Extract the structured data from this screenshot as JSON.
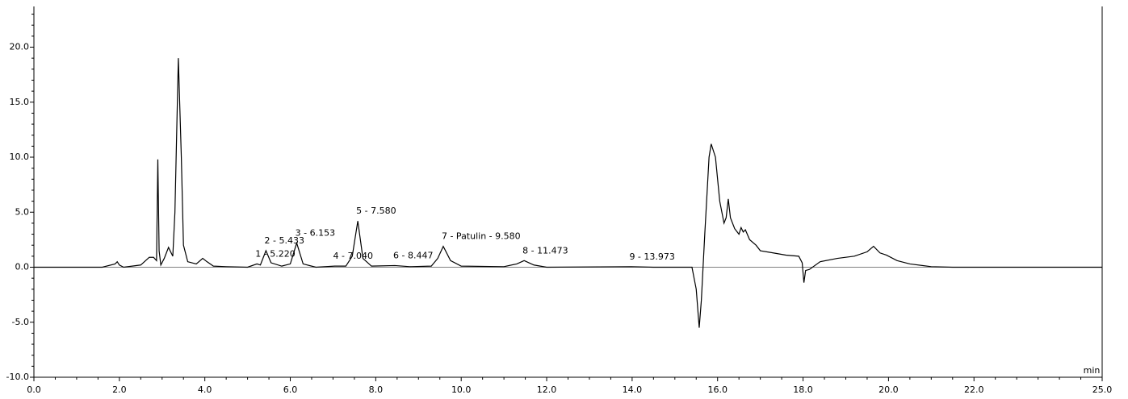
{
  "chart_data": {
    "type": "line",
    "x_label": "min",
    "color": "#000000",
    "x": [
      0,
      1.6,
      1.9,
      1.95,
      2.0,
      2.1,
      2.5,
      2.7,
      2.8,
      2.87,
      2.9,
      2.93,
      2.97,
      3.05,
      3.15,
      3.25,
      3.3,
      3.38,
      3.45,
      3.5,
      3.6,
      3.8,
      3.95,
      4.05,
      4.2,
      4.5,
      5.0,
      5.22,
      5.3,
      5.43,
      5.55,
      5.8,
      6.0,
      6.15,
      6.3,
      6.6,
      7.04,
      7.3,
      7.45,
      7.58,
      7.7,
      7.9,
      8.447,
      8.8,
      9.3,
      9.45,
      9.58,
      9.75,
      10.0,
      11.0,
      11.3,
      11.473,
      11.7,
      12.0,
      13.973,
      14.5,
      15.4,
      15.5,
      15.57,
      15.62,
      15.7,
      15.8,
      15.85,
      15.95,
      16.05,
      16.15,
      16.2,
      16.25,
      16.3,
      16.4,
      16.5,
      16.55,
      16.6,
      16.65,
      16.75,
      16.9,
      17.0,
      17.3,
      17.6,
      17.9,
      17.98,
      18.02,
      18.06,
      18.15,
      18.4,
      18.8,
      19.2,
      19.5,
      19.65,
      19.8,
      19.95,
      20.2,
      20.5,
      21.0,
      21.5,
      25.0
    ],
    "values": [
      0,
      0,
      0.3,
      0.5,
      0.2,
      0,
      0.2,
      0.9,
      0.9,
      0.6,
      9.8,
      1.5,
      0.2,
      0.8,
      1.8,
      1.0,
      5,
      19,
      10,
      2,
      0.5,
      0.3,
      0.8,
      0.5,
      0.1,
      0.05,
      0,
      0.3,
      0.2,
      1.5,
      0.4,
      0.1,
      0.3,
      2.2,
      0.3,
      0,
      0.1,
      0.1,
      1.0,
      4.2,
      0.8,
      0.1,
      0.15,
      0.05,
      0.1,
      0.8,
      1.9,
      0.6,
      0.1,
      0.05,
      0.3,
      0.6,
      0.2,
      0,
      0.05,
      0,
      0,
      -2,
      -5.5,
      -3,
      3,
      10,
      11.2,
      10,
      6,
      4,
      4.5,
      6.2,
      4.5,
      3.5,
      3,
      3.6,
      3.2,
      3.4,
      2.5,
      2,
      1.5,
      1.3,
      1.1,
      1.0,
      0.4,
      -1.4,
      -0.3,
      -0.2,
      0.5,
      0.8,
      1.0,
      1.4,
      1.9,
      1.3,
      1.1,
      0.6,
      0.3,
      0.05,
      0,
      0
    ],
    "annotations": [
      {
        "label": "1 - 5.220",
        "x": 5.22,
        "y": 0.3
      },
      {
        "label": "2 - 5.433",
        "x": 5.433,
        "y": 1.5
      },
      {
        "label": "3 - 6.153",
        "x": 6.153,
        "y": 2.2
      },
      {
        "label": "4 - 7.040",
        "x": 7.04,
        "y": 0.1
      },
      {
        "label": "5 - 7.580",
        "x": 7.58,
        "y": 4.2
      },
      {
        "label": "6 - 8.447",
        "x": 8.447,
        "y": 0.15
      },
      {
        "label": "7 - Patulin - 9.580",
        "x": 9.58,
        "y": 1.9
      },
      {
        "label": "8 - 11.473",
        "x": 11.473,
        "y": 0.6
      },
      {
        "label": "9 - 13.973",
        "x": 13.973,
        "y": 0.05
      }
    ],
    "xlim": [
      0,
      25
    ],
    "ylim": [
      -10,
      23.7
    ],
    "xticks": [
      {
        "value": 0,
        "label": "0.0"
      },
      {
        "value": 2,
        "label": "2.0"
      },
      {
        "value": 4,
        "label": "4.0"
      },
      {
        "value": 6,
        "label": "6.0"
      },
      {
        "value": 8,
        "label": "8.0"
      },
      {
        "value": 10,
        "label": "10.0"
      },
      {
        "value": 12,
        "label": "12.0"
      },
      {
        "value": 14,
        "label": "14.0"
      },
      {
        "value": 16,
        "label": "16.0"
      },
      {
        "value": 18,
        "label": "18.0"
      },
      {
        "value": 20,
        "label": "20.0"
      },
      {
        "value": 22,
        "label": "22.0"
      },
      {
        "value": 25,
        "label": "25.0"
      }
    ],
    "yticks": [
      {
        "value": -10,
        "label": "-10.0"
      },
      {
        "value": -5,
        "label": "-5.0"
      },
      {
        "value": 0,
        "label": "0.0"
      },
      {
        "value": 5,
        "label": "5.0"
      },
      {
        "value": 10,
        "label": "10.0"
      },
      {
        "value": 15,
        "label": "15.0"
      },
      {
        "value": 20,
        "label": "20.0"
      }
    ]
  }
}
